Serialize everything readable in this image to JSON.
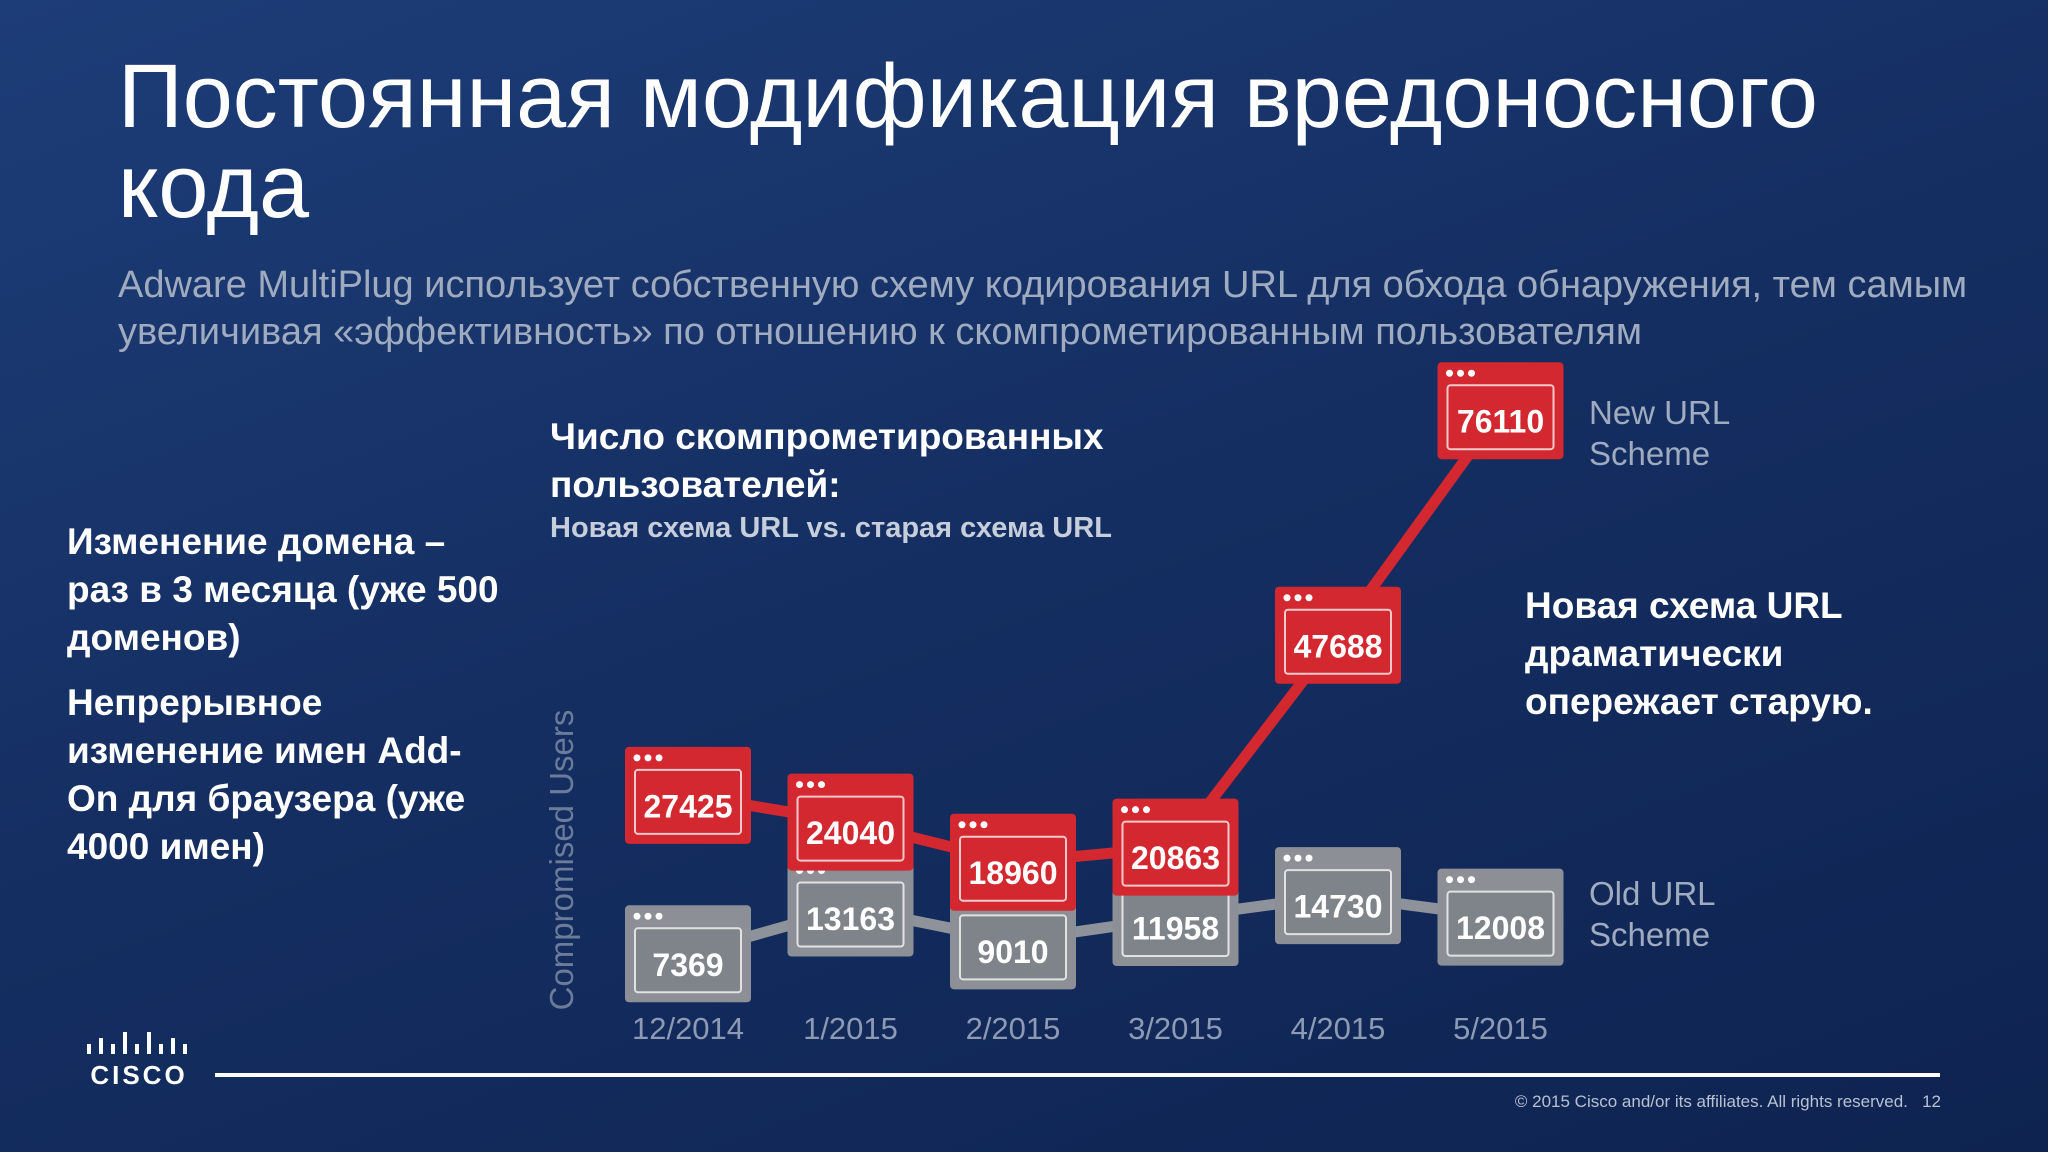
{
  "slide": {
    "title": "Постоянная модификация вредоносного кода",
    "subtitle": "Adware MultiPlug использует собственную схему кодирования URL для обхода обнаружения, тем самым увеличивая «эффективность» по отношению к скомпрометированным пользователям"
  },
  "left_notes": [
    "Изменение домена – раз в 3 месяца (уже 500 доменов)",
    "Непрерывное изменение имен Add-On для браузера (уже 4000 имен)"
  ],
  "annotation": "Новая схема URL драматически опережает старую.",
  "footer": {
    "copyright": "© 2015  Cisco and/or its affiliates. All rights reserved.",
    "page": "12",
    "logo_text": "CISCO"
  },
  "colors": {
    "new_series": "#d3282f",
    "old_series": "#8c8f96",
    "background": "#152f63"
  },
  "chart_data": {
    "type": "line",
    "title": "Число скомпрометированных пользователей:",
    "subtitle": "Новая схема URL vs. старая схема URL",
    "ylabel": "Compromised Users",
    "xlabel": "",
    "categories": [
      "12/2014",
      "1/2015",
      "2/2015",
      "3/2015",
      "4/2015",
      "5/2015"
    ],
    "series": [
      {
        "name": "New URL Scheme",
        "color": "#d3282f",
        "values": [
          27425,
          24040,
          18960,
          20863,
          47688,
          76110
        ]
      },
      {
        "name": "Old URL Scheme",
        "color": "#8c8f96",
        "values": [
          7369,
          13163,
          9010,
          11958,
          14730,
          12008
        ]
      }
    ],
    "data_labels": true,
    "grid": false,
    "legend": "right"
  }
}
